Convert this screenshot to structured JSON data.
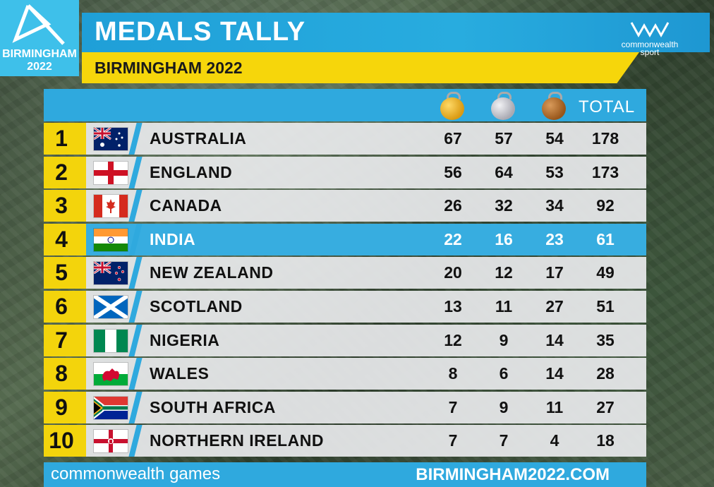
{
  "logo": {
    "city": "BIRMINGHAM",
    "year": "2022"
  },
  "header": {
    "title": "MEDALS TALLY",
    "subtitle": "BIRMINGHAM 2022",
    "brand_line1": "commonwealth",
    "brand_line2": "sport"
  },
  "table": {
    "columns": {
      "gold": "gold-medal-icon",
      "silver": "silver-medal-icon",
      "bronze": "bronze-medal-icon",
      "total": "TOTAL"
    },
    "rows": [
      {
        "rank": "1",
        "flag": "australia-flag-icon",
        "country": "AUSTRALIA",
        "gold": "67",
        "silver": "57",
        "bronze": "54",
        "total": "178"
      },
      {
        "rank": "2",
        "flag": "england-flag-icon",
        "country": "ENGLAND",
        "gold": "56",
        "silver": "64",
        "bronze": "53",
        "total": "173"
      },
      {
        "rank": "3",
        "flag": "canada-flag-icon",
        "country": "CANADA",
        "gold": "26",
        "silver": "32",
        "bronze": "34",
        "total": "92"
      },
      {
        "rank": "4",
        "flag": "india-flag-icon",
        "country": "INDIA",
        "gold": "22",
        "silver": "16",
        "bronze": "23",
        "total": "61",
        "highlight": true
      },
      {
        "rank": "5",
        "flag": "new-zealand-flag-icon",
        "country": "NEW ZEALAND",
        "gold": "20",
        "silver": "12",
        "bronze": "17",
        "total": "49"
      },
      {
        "rank": "6",
        "flag": "scotland-flag-icon",
        "country": "SCOTLAND",
        "gold": "13",
        "silver": "11",
        "bronze": "27",
        "total": "51"
      },
      {
        "rank": "7",
        "flag": "nigeria-flag-icon",
        "country": "NIGERIA",
        "gold": "12",
        "silver": "9",
        "bronze": "14",
        "total": "35"
      },
      {
        "rank": "8",
        "flag": "wales-flag-icon",
        "country": "WALES",
        "gold": "8",
        "silver": "6",
        "bronze": "14",
        "total": "28"
      },
      {
        "rank": "9",
        "flag": "south-africa-flag-icon",
        "country": "SOUTH AFRICA",
        "gold": "7",
        "silver": "9",
        "bronze": "11",
        "total": "27"
      },
      {
        "rank": "10",
        "flag": "northern-ireland-flag-icon",
        "country": "NORTHERN IRELAND",
        "gold": "7",
        "silver": "7",
        "bronze": "4",
        "total": "18"
      }
    ]
  },
  "footer": {
    "left": "commonwealth games",
    "right": "BIRMINGHAM2022.COM"
  },
  "colors": {
    "blue": "#2fa9de",
    "yellow": "#f3d40c",
    "gold": "#e6a81c",
    "silver": "#c9c9cf",
    "bronze": "#b06b24"
  }
}
